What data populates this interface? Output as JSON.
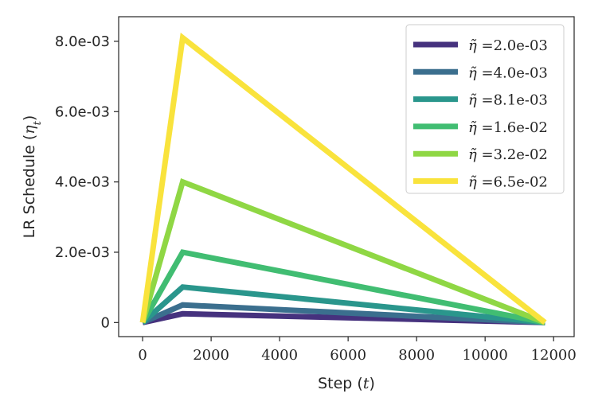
{
  "chart_data": {
    "type": "line",
    "xlabel": "Step (t)",
    "ylabel": "LR Schedule (η_t)",
    "xlim": [
      -700,
      12600
    ],
    "ylim": [
      -0.0004,
      0.0087
    ],
    "x_ticks": [
      0,
      2000,
      4000,
      6000,
      8000,
      10000,
      12000
    ],
    "x_tick_labels": [
      "0",
      "2000",
      "4000",
      "6000",
      "8000",
      "10000",
      "12000"
    ],
    "y_ticks": [
      0,
      0.002,
      0.004,
      0.006,
      0.008
    ],
    "y_tick_labels": [
      "0",
      "2.0e-03",
      "4.0e-03",
      "6.0e-03",
      "8.0e-03"
    ],
    "grid": false,
    "legend_position": "top-right",
    "series": [
      {
        "name": "η̃ =2.0e-03",
        "color": "#46327e",
        "x": [
          0,
          1170,
          11750
        ],
        "y": [
          0,
          0.00025,
          0
        ]
      },
      {
        "name": "η̃ =4.0e-03",
        "color": "#3b6f8e",
        "x": [
          0,
          1170,
          11750
        ],
        "y": [
          0,
          0.0005,
          0
        ]
      },
      {
        "name": "η̃ =8.1e-03",
        "color": "#2a968c",
        "x": [
          0,
          1170,
          11750
        ],
        "y": [
          0,
          0.00101,
          0
        ]
      },
      {
        "name": "η̃ =1.6e-02",
        "color": "#41bd72",
        "x": [
          0,
          1170,
          11750
        ],
        "y": [
          0,
          0.002,
          0
        ]
      },
      {
        "name": "η̃ =3.2e-02",
        "color": "#8fd744",
        "x": [
          0,
          1170,
          11750
        ],
        "y": [
          0,
          0.004,
          0
        ]
      },
      {
        "name": "η̃ =6.5e-02",
        "color": "#f9e33c",
        "x": [
          0,
          1170,
          11750
        ],
        "y": [
          0,
          0.0081,
          0
        ]
      }
    ]
  }
}
